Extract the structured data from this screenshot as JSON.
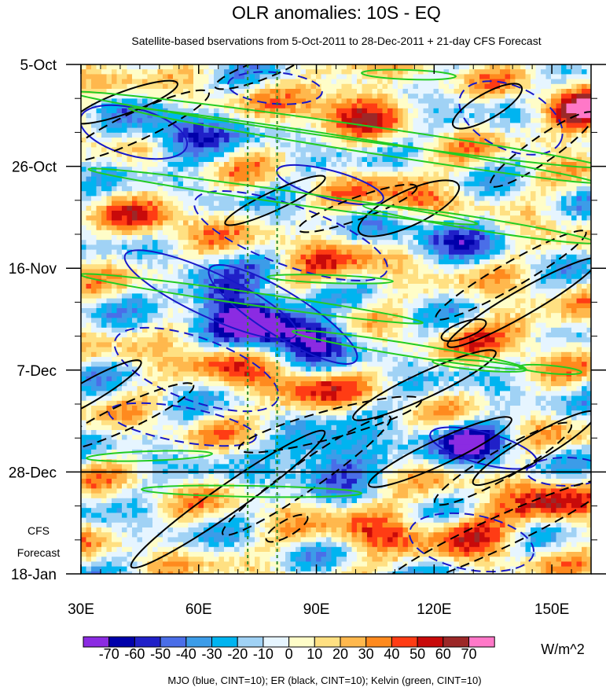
{
  "chart_data": {
    "type": "heatmap",
    "title": "OLR anomalies: 10S - EQ",
    "subtitle": "Satellite-based bservations from 5-Oct-2011 to 28-Dec-2011 + 21-day CFS Forecast",
    "xlabel": "",
    "ylabel": "",
    "x_range": [
      30,
      160
    ],
    "x_ticks": [
      {
        "value": 30,
        "label": "30E"
      },
      {
        "value": 60,
        "label": "60E"
      },
      {
        "value": 90,
        "label": "90E"
      },
      {
        "value": 120,
        "label": "120E"
      },
      {
        "value": 150,
        "label": "150E"
      }
    ],
    "y_range_days": [
      0,
      105
    ],
    "y_ticks": [
      {
        "day": 0,
        "label": "5-Oct"
      },
      {
        "day": 21,
        "label": "26-Oct"
      },
      {
        "day": 42,
        "label": "16-Nov"
      },
      {
        "day": 63,
        "label": "7-Dec"
      },
      {
        "day": 84,
        "label": "28-Dec"
      },
      {
        "day": 105,
        "label": "18-Jan"
      }
    ],
    "forecast_start_day": 84,
    "forecast_label": [
      "CFS",
      "Forecast"
    ],
    "reference_longitudes": [
      72.5,
      80
    ],
    "colorbar": {
      "unit": "W/m^2",
      "labels": [
        "-70",
        "-60",
        "-50",
        "-40",
        "-30",
        "-20",
        "-10",
        "0",
        "10",
        "20",
        "30",
        "40",
        "50",
        "60",
        "70"
      ],
      "colors": [
        "#8b2be2",
        "#0000aa",
        "#2020c8",
        "#4a6ee8",
        "#3c9ce8",
        "#00b4f0",
        "#a0d2f5",
        "#e6f5ff",
        "#fffdc8",
        "#ffe082",
        "#ffb84d",
        "#ff8a1e",
        "#ff3c14",
        "#c80a0a",
        "#9c2828",
        "#ff78c8"
      ]
    },
    "anomaly_features": [
      {
        "lon": 55,
        "day": 15,
        "value": -55
      },
      {
        "lon": 65,
        "day": 48,
        "value": -60
      },
      {
        "lon": 75,
        "day": 53,
        "value": -70
      },
      {
        "lon": 88,
        "day": 56,
        "value": -65
      },
      {
        "lon": 122,
        "day": 34,
        "value": -50
      },
      {
        "lon": 93,
        "day": 81,
        "value": -70
      },
      {
        "lon": 129,
        "day": 78,
        "value": -55
      },
      {
        "lon": 98,
        "day": 8,
        "value": 55
      },
      {
        "lon": 157,
        "day": 10,
        "value": 55
      },
      {
        "lon": 115,
        "day": 27,
        "value": 40
      },
      {
        "lon": 150,
        "day": 90,
        "value": 45
      },
      {
        "lon": 130,
        "day": 96,
        "value": 40
      },
      {
        "lon": 95,
        "day": 42,
        "value": 30
      },
      {
        "lon": 140,
        "day": 55,
        "value": 35
      },
      {
        "lon": 85,
        "day": 67,
        "value": 40
      },
      {
        "lon": 65,
        "day": 60,
        "value": 30
      },
      {
        "lon": 50,
        "day": 32,
        "value": 30
      },
      {
        "lon": 105,
        "day": 96,
        "value": 35
      }
    ],
    "contour_legend": "MJO (blue, CINT=10); ER (black, CINT=10); Kelvin (green, CINT=10)",
    "contour_series": [
      {
        "name": "MJO",
        "color": "#1818c8"
      },
      {
        "name": "ER",
        "color": "#000000"
      },
      {
        "name": "Kelvin",
        "color": "#22cc22"
      }
    ]
  }
}
